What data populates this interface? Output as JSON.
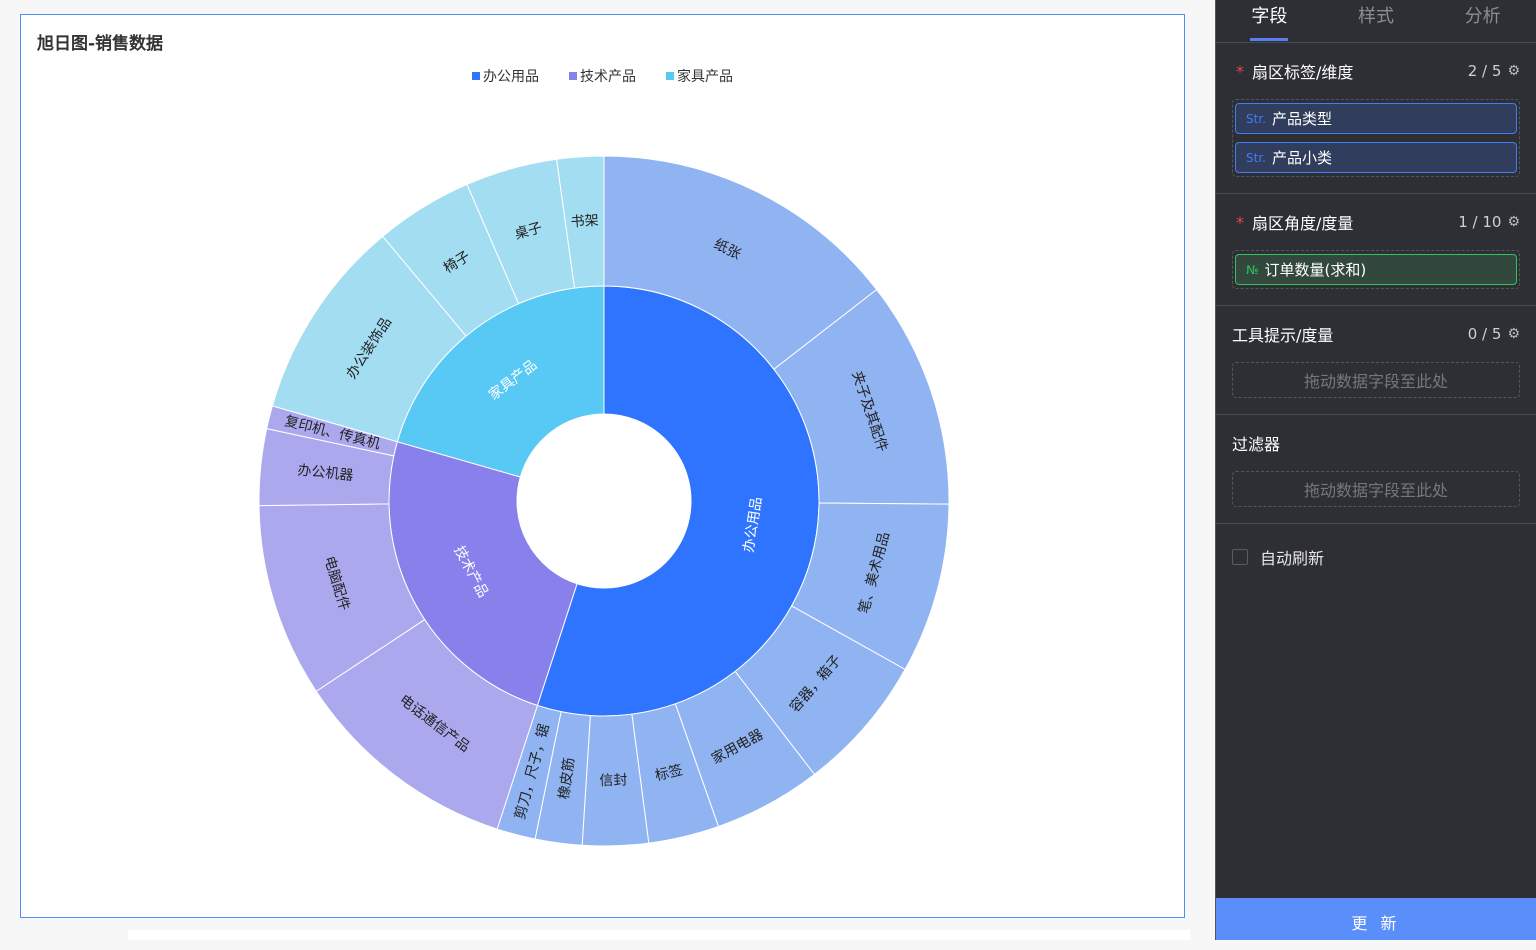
{
  "chart_title": "旭日图-销售数据",
  "chart_data": {
    "type": "sunburst",
    "title": "旭日图-销售数据",
    "legend": [
      "办公用品",
      "技术产品",
      "家具产品"
    ],
    "legend_placement": "top-center",
    "measure": "订单数量(求和)",
    "series": [
      {
        "name": "办公用品",
        "color": "#2f74ff",
        "child_color": "#90b3f2",
        "children": [
          {
            "name": "纸张",
            "value": 1450
          },
          {
            "name": "夹子及其配件",
            "value": 1064
          },
          {
            "name": "笔、美术用品",
            "value": 797
          },
          {
            "name": "容器，箱子",
            "value": 644
          },
          {
            "name": "家用电器",
            "value": 506
          },
          {
            "name": "标签",
            "value": 331
          },
          {
            "name": "信封",
            "value": 308
          },
          {
            "name": "橡皮筋",
            "value": 219
          },
          {
            "name": "剪刀，尺子，锯",
            "value": 181
          }
        ]
      },
      {
        "name": "技术产品",
        "color": "#8880eb",
        "child_color": "#aca8ee",
        "children": [
          {
            "name": "电话通信产品",
            "value": 1069
          },
          {
            "name": "电脑配件",
            "value": 908
          },
          {
            "name": "办公机器",
            "value": 358
          },
          {
            "name": "复印机、传真机",
            "value": 108
          }
        ]
      },
      {
        "name": "家具产品",
        "color": "#58c8f4",
        "child_color": "#a3ddf2",
        "children": [
          {
            "name": "办公装饰品",
            "value": 947
          },
          {
            "name": "椅子",
            "value": 458
          },
          {
            "name": "桌子",
            "value": 431
          },
          {
            "name": "书架",
            "value": 219
          }
        ]
      }
    ]
  },
  "panel": {
    "tabs": [
      {
        "label": "字段"
      },
      {
        "label": "样式"
      },
      {
        "label": "分析"
      }
    ],
    "sections": {
      "dimension": {
        "title": "扇区标签/维度",
        "count": "2 / 5",
        "fields": [
          {
            "type": "Str.",
            "name": "产品类型"
          },
          {
            "type": "Str.",
            "name": "产品小类"
          }
        ]
      },
      "measure": {
        "title": "扇区角度/度量",
        "count": "1 / 10",
        "fields": [
          {
            "type": "№",
            "name": "订单数量(求和)"
          }
        ]
      },
      "tooltip": {
        "title": "工具提示/度量",
        "count": "0 / 5",
        "placeholder": "拖动数据字段至此处"
      },
      "filter": {
        "title": "过滤器",
        "placeholder": "拖动数据字段至此处"
      }
    },
    "auto_refresh": {
      "label": "自动刷新",
      "checked": false
    },
    "update_label": "更 新"
  }
}
